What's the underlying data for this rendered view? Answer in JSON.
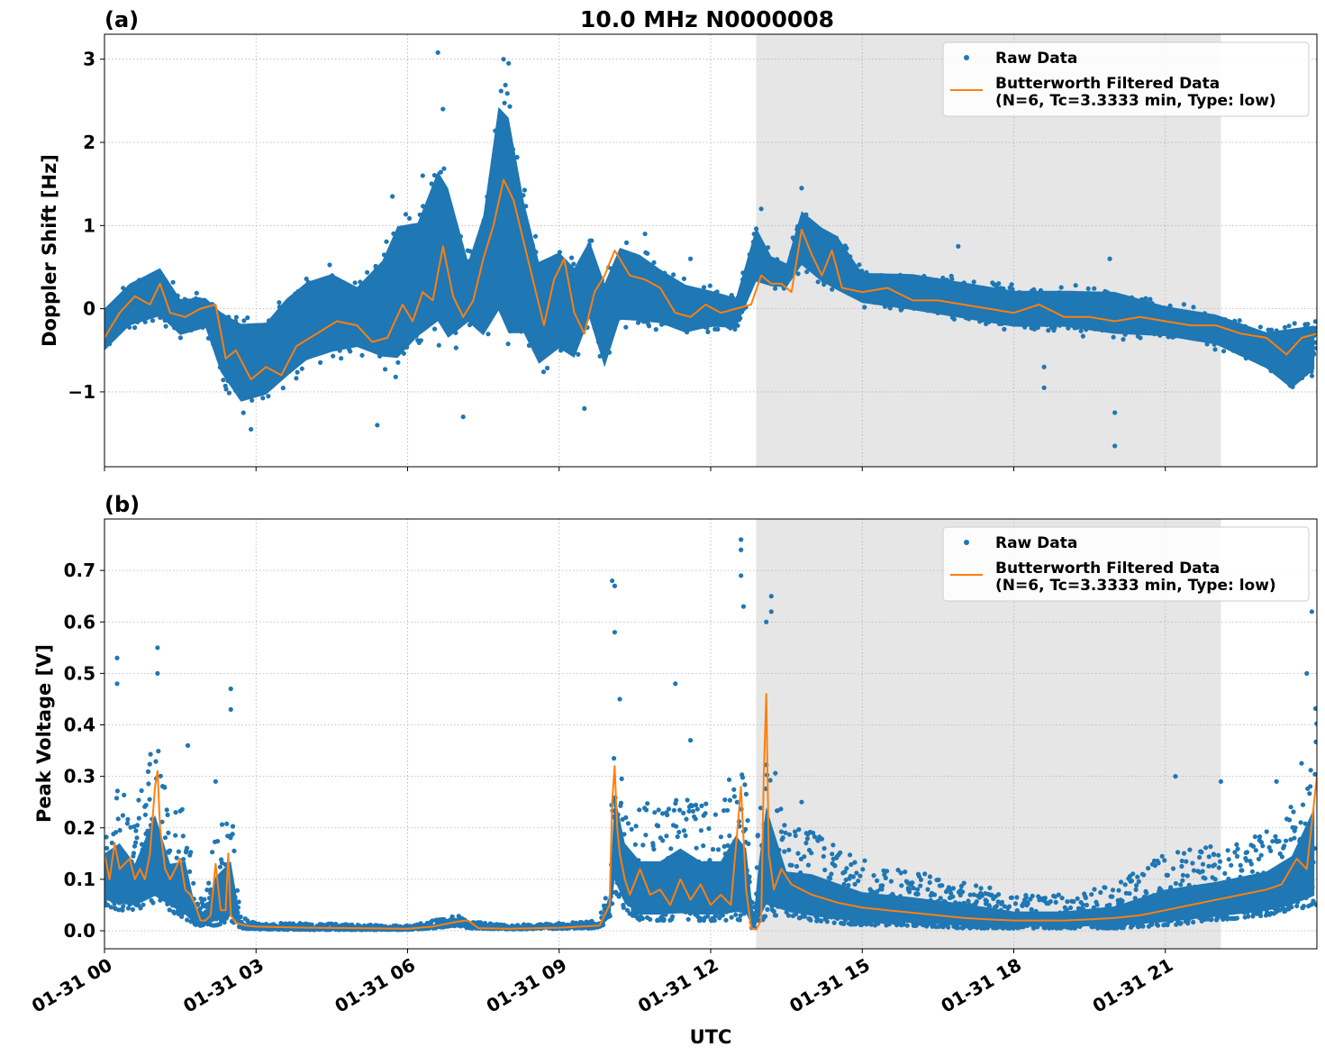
{
  "figure": {
    "title": "10.0 MHz N0000008",
    "xlabel": "UTC",
    "x_tick_labels": [
      "01-31 00",
      "01-31 03",
      "01-31 06",
      "01-31 09",
      "01-31 12",
      "01-31 15",
      "01-31 18",
      "01-31 21"
    ]
  },
  "legend": {
    "raw_label": "Raw Data",
    "filtered_label_line1": "Butterworth Filtered Data",
    "filtered_label_line2": "(N=6, Tc=3.3333 min, Type: low)"
  },
  "colors": {
    "raw": "#1f77b4",
    "filtered": "#ff7f0e",
    "shade": "#e6e6e6",
    "grid": "#b0b0b0"
  },
  "chart_data": [
    {
      "type": "scatter",
      "panel_tag": "(a)",
      "ylabel": "Doppler Shift [Hz]",
      "x_unit": "hours UTC 01-31",
      "xlim": [
        0,
        24
      ],
      "ylim": [
        -1.9,
        3.3
      ],
      "y_ticks": [
        -1,
        0,
        1,
        2,
        3
      ],
      "y_tick_labels": [
        "−1",
        "0",
        "1",
        "2",
        "3"
      ],
      "grid": true,
      "legend_position": "top-right",
      "shaded_interval": [
        12.9,
        22.1
      ],
      "series": [
        {
          "name": "Raw Data",
          "style": "points",
          "envelope": {
            "x": [
              0.0,
              0.5,
              1.1,
              1.5,
              2.0,
              2.3,
              2.7,
              3.2,
              3.6,
              4.0,
              4.5,
              5.0,
              5.5,
              5.8,
              6.2,
              6.6,
              6.8,
              7.2,
              7.5,
              7.8,
              8.0,
              8.3,
              8.6,
              9.0,
              9.3,
              9.6,
              9.9,
              10.2,
              10.6,
              11.0,
              11.5,
              12.0,
              12.5,
              12.9,
              13.2,
              13.5,
              13.8,
              14.2,
              14.5,
              15.0,
              16.0,
              17.0,
              18.0,
              19.0,
              20.0,
              21.0,
              22.0,
              23.0,
              23.5,
              24.0
            ],
            "lower": [
              -0.6,
              -0.3,
              -0.2,
              -0.4,
              -0.3,
              -0.9,
              -1.3,
              -1.2,
              -1.0,
              -0.8,
              -0.7,
              -0.6,
              -0.8,
              -0.9,
              -0.6,
              -0.5,
              -0.7,
              -0.3,
              -0.6,
              -0.5,
              -0.8,
              -0.6,
              -0.9,
              -0.7,
              -0.8,
              -0.3,
              -0.9,
              -0.3,
              -0.3,
              -0.3,
              -0.4,
              -0.3,
              -0.3,
              0.2,
              0.2,
              0.2,
              0.4,
              0.2,
              0.1,
              0.0,
              -0.1,
              -0.2,
              -0.3,
              -0.3,
              -0.4,
              -0.4,
              -0.5,
              -0.8,
              -1.1,
              -0.8
            ],
            "upper": [
              0.1,
              0.4,
              0.6,
              0.2,
              0.2,
              0.1,
              0.0,
              0.0,
              0.3,
              0.5,
              0.6,
              0.4,
              0.8,
              1.3,
              1.3,
              2.0,
              1.8,
              0.7,
              1.4,
              2.9,
              2.8,
              1.6,
              0.8,
              0.9,
              0.7,
              1.0,
              0.5,
              0.9,
              0.8,
              0.6,
              0.4,
              0.3,
              0.2,
              1.1,
              0.7,
              0.6,
              1.3,
              1.1,
              1.0,
              0.5,
              0.5,
              0.4,
              0.3,
              0.3,
              0.3,
              0.1,
              0.0,
              -0.2,
              -0.1,
              -0.1
            ]
          },
          "outliers": [
            [
              6.6,
              3.08
            ],
            [
              6.7,
              2.4
            ],
            [
              7.9,
              3.0
            ],
            [
              8.0,
              2.95
            ],
            [
              6.3,
              1.6
            ],
            [
              5.7,
              1.35
            ],
            [
              10.7,
              0.9
            ],
            [
              13.8,
              1.45
            ],
            [
              13.0,
              1.2
            ],
            [
              5.4,
              -1.4
            ],
            [
              7.1,
              -1.3
            ],
            [
              2.9,
              -1.45
            ],
            [
              9.5,
              -1.2
            ],
            [
              20.0,
              -1.65
            ],
            [
              20.0,
              -1.25
            ],
            [
              18.6,
              -0.95
            ],
            [
              18.6,
              -0.7
            ],
            [
              11.6,
              0.6
            ],
            [
              19.9,
              0.6
            ],
            [
              16.9,
              0.75
            ]
          ]
        },
        {
          "name": "Butterworth Filtered Data",
          "style": "line",
          "x": [
            0.0,
            0.3,
            0.6,
            0.9,
            1.1,
            1.3,
            1.6,
            1.9,
            2.2,
            2.4,
            2.6,
            2.9,
            3.2,
            3.5,
            3.8,
            4.2,
            4.6,
            5.0,
            5.3,
            5.6,
            5.9,
            6.1,
            6.3,
            6.5,
            6.7,
            6.9,
            7.1,
            7.3,
            7.5,
            7.7,
            7.9,
            8.1,
            8.3,
            8.5,
            8.7,
            8.9,
            9.1,
            9.3,
            9.5,
            9.7,
            9.9,
            10.1,
            10.4,
            10.7,
            11.0,
            11.3,
            11.6,
            11.9,
            12.2,
            12.5,
            12.8,
            13.0,
            13.2,
            13.4,
            13.6,
            13.8,
            14.0,
            14.2,
            14.4,
            14.6,
            15.0,
            15.5,
            16.0,
            16.5,
            17.0,
            17.5,
            18.0,
            18.5,
            19.0,
            19.5,
            20.0,
            20.5,
            21.0,
            21.5,
            22.0,
            22.5,
            23.0,
            23.4,
            23.7,
            24.0
          ],
          "y": [
            -0.35,
            -0.05,
            0.15,
            0.05,
            0.3,
            -0.05,
            -0.1,
            0.0,
            0.05,
            -0.6,
            -0.5,
            -0.85,
            -0.7,
            -0.8,
            -0.45,
            -0.3,
            -0.15,
            -0.2,
            -0.4,
            -0.35,
            0.05,
            -0.15,
            0.2,
            0.1,
            0.75,
            0.15,
            -0.1,
            0.1,
            0.6,
            1.0,
            1.55,
            1.3,
            0.8,
            0.3,
            -0.2,
            0.35,
            0.6,
            -0.05,
            -0.3,
            0.2,
            0.4,
            0.7,
            0.4,
            0.35,
            0.25,
            -0.05,
            -0.1,
            0.05,
            -0.05,
            0.0,
            0.05,
            0.4,
            0.3,
            0.3,
            0.2,
            0.95,
            0.65,
            0.4,
            0.7,
            0.25,
            0.2,
            0.25,
            0.1,
            0.1,
            0.05,
            0.0,
            -0.05,
            0.05,
            -0.1,
            -0.1,
            -0.15,
            -0.1,
            -0.15,
            -0.2,
            -0.2,
            -0.3,
            -0.35,
            -0.55,
            -0.35,
            -0.3
          ]
        }
      ]
    },
    {
      "type": "scatter",
      "panel_tag": "(b)",
      "ylabel": "Peak Voltage [V]",
      "x_unit": "hours UTC 01-31",
      "xlim": [
        0,
        24
      ],
      "ylim": [
        -0.035,
        0.8
      ],
      "y_ticks": [
        0.0,
        0.1,
        0.2,
        0.3,
        0.4,
        0.5,
        0.6,
        0.7
      ],
      "y_tick_labels": [
        "0.0",
        "0.1",
        "0.2",
        "0.3",
        "0.4",
        "0.5",
        "0.6",
        "0.7"
      ],
      "grid": true,
      "legend_position": "top-right",
      "shaded_interval": [
        12.9,
        22.1
      ],
      "series": [
        {
          "name": "Raw Data",
          "style": "points",
          "envelope": {
            "x": [
              0.0,
              0.3,
              0.6,
              1.0,
              1.3,
              1.6,
              1.8,
              2.0,
              2.2,
              2.5,
              2.7,
              3.0,
              4.0,
              5.0,
              6.0,
              6.5,
              7.0,
              7.2,
              8.0,
              9.0,
              9.8,
              10.0,
              10.1,
              10.3,
              10.6,
              11.0,
              11.4,
              11.8,
              12.2,
              12.5,
              12.7,
              12.85,
              12.95,
              13.1,
              13.5,
              14.0,
              15.0,
              16.0,
              17.0,
              18.0,
              19.0,
              20.0,
              21.0,
              22.0,
              23.0,
              23.5,
              24.0
            ],
            "lower": [
              0.05,
              0.04,
              0.04,
              0.05,
              0.04,
              0.02,
              0.01,
              0.01,
              0.01,
              0.02,
              0.005,
              0.003,
              0.002,
              0.002,
              0.002,
              0.005,
              0.01,
              0.005,
              0.003,
              0.004,
              0.005,
              0.02,
              0.08,
              0.04,
              0.02,
              0.02,
              0.02,
              0.02,
              0.02,
              0.02,
              0.02,
              0.0,
              0.01,
              0.03,
              0.03,
              0.02,
              0.01,
              0.01,
              0.005,
              0.005,
              0.005,
              0.005,
              0.01,
              0.02,
              0.03,
              0.04,
              0.05
            ],
            "upper": [
              0.25,
              0.3,
              0.22,
              0.4,
              0.22,
              0.25,
              0.08,
              0.06,
              0.2,
              0.25,
              0.03,
              0.015,
              0.015,
              0.012,
              0.01,
              0.02,
              0.03,
              0.02,
              0.012,
              0.015,
              0.02,
              0.12,
              0.45,
              0.3,
              0.25,
              0.25,
              0.3,
              0.25,
              0.25,
              0.35,
              0.3,
              0.05,
              0.25,
              0.45,
              0.2,
              0.2,
              0.14,
              0.12,
              0.1,
              0.07,
              0.07,
              0.09,
              0.15,
              0.17,
              0.2,
              0.25,
              0.45
            ]
          },
          "outliers": [
            [
              0.25,
              0.53
            ],
            [
              0.25,
              0.48
            ],
            [
              1.05,
              0.55
            ],
            [
              1.05,
              0.5
            ],
            [
              2.5,
              0.47
            ],
            [
              2.5,
              0.43
            ],
            [
              2.2,
              0.29
            ],
            [
              1.65,
              0.36
            ],
            [
              10.05,
              0.68
            ],
            [
              10.1,
              0.67
            ],
            [
              10.1,
              0.58
            ],
            [
              10.2,
              0.45
            ],
            [
              11.3,
              0.48
            ],
            [
              11.6,
              0.37
            ],
            [
              12.6,
              0.76
            ],
            [
              12.6,
              0.74
            ],
            [
              12.6,
              0.69
            ],
            [
              12.65,
              0.63
            ],
            [
              13.2,
              0.65
            ],
            [
              13.2,
              0.62
            ],
            [
              13.1,
              0.6
            ],
            [
              13.8,
              0.25
            ],
            [
              23.9,
              0.62
            ],
            [
              23.8,
              0.5
            ],
            [
              21.2,
              0.3
            ],
            [
              22.1,
              0.29
            ],
            [
              23.2,
              0.29
            ]
          ]
        },
        {
          "name": "Butterworth Filtered Data",
          "style": "line",
          "x": [
            0.0,
            0.1,
            0.2,
            0.3,
            0.4,
            0.5,
            0.6,
            0.7,
            0.8,
            0.9,
            1.0,
            1.05,
            1.1,
            1.2,
            1.3,
            1.5,
            1.6,
            1.7,
            1.8,
            1.9,
            2.0,
            2.1,
            2.2,
            2.3,
            2.4,
            2.45,
            2.5,
            2.6,
            2.8,
            3.0,
            4.0,
            5.0,
            6.0,
            6.5,
            7.0,
            7.2,
            7.4,
            8.0,
            9.0,
            9.8,
            10.0,
            10.05,
            10.1,
            10.15,
            10.2,
            10.3,
            10.4,
            10.6,
            10.8,
            11.0,
            11.2,
            11.4,
            11.6,
            11.8,
            12.0,
            12.2,
            12.4,
            12.55,
            12.6,
            12.7,
            12.8,
            12.9,
            13.0,
            13.05,
            13.1,
            13.15,
            13.25,
            13.4,
            13.6,
            13.8,
            14.0,
            14.5,
            15.0,
            15.5,
            16.0,
            16.5,
            17.0,
            17.5,
            18.0,
            18.5,
            19.0,
            19.5,
            20.0,
            20.5,
            21.0,
            21.5,
            22.0,
            22.5,
            23.0,
            23.3,
            23.6,
            23.8,
            24.0
          ],
          "y": [
            0.15,
            0.1,
            0.17,
            0.12,
            0.13,
            0.14,
            0.1,
            0.12,
            0.1,
            0.15,
            0.28,
            0.31,
            0.2,
            0.12,
            0.1,
            0.14,
            0.08,
            0.07,
            0.05,
            0.02,
            0.02,
            0.03,
            0.13,
            0.04,
            0.04,
            0.15,
            0.03,
            0.015,
            0.01,
            0.008,
            0.006,
            0.005,
            0.004,
            0.008,
            0.018,
            0.02,
            0.005,
            0.004,
            0.006,
            0.01,
            0.05,
            0.25,
            0.32,
            0.2,
            0.15,
            0.1,
            0.07,
            0.12,
            0.07,
            0.08,
            0.05,
            0.1,
            0.06,
            0.09,
            0.05,
            0.07,
            0.05,
            0.22,
            0.28,
            0.08,
            0.005,
            0.003,
            0.02,
            0.3,
            0.46,
            0.15,
            0.08,
            0.12,
            0.09,
            0.08,
            0.07,
            0.055,
            0.045,
            0.04,
            0.035,
            0.03,
            0.025,
            0.022,
            0.02,
            0.02,
            0.02,
            0.022,
            0.025,
            0.03,
            0.04,
            0.05,
            0.06,
            0.07,
            0.08,
            0.09,
            0.14,
            0.12,
            0.3
          ]
        }
      ]
    }
  ]
}
